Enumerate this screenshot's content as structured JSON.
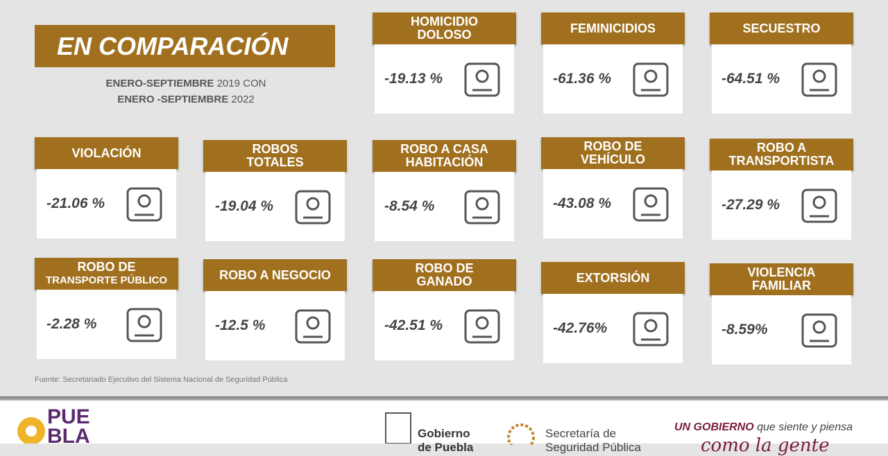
{
  "header": {
    "title": "EN COMPARACIÓN",
    "subtitle": [
      {
        "bold": "ENERO-SEPTIEMBRE",
        "rest": " 2019 CON"
      },
      {
        "bold": "ENERO -SEPTIEMBRE",
        "rest": " 2022"
      }
    ]
  },
  "cards": [
    {
      "title": [
        "HOMICIDIO",
        "DOLOSO"
      ],
      "value": "-19.13 %"
    },
    {
      "title": [
        "FEMINICIDIOS"
      ],
      "value": "-61.36 %"
    },
    {
      "title": [
        "SECUESTRO"
      ],
      "value": "-64.51 %"
    },
    {
      "title": [
        "VIOLACIÓN"
      ],
      "value": "-21.06 %"
    },
    {
      "title": [
        "ROBOS",
        "TOTALES"
      ],
      "value": "-19.04 %"
    },
    {
      "title": [
        "ROBO A CASA",
        "HABITACIÓN"
      ],
      "value": "-8.54 %"
    },
    {
      "title": [
        "ROBO DE",
        "VEHÍCULO"
      ],
      "value": "-43.08 %"
    },
    {
      "title": [
        "ROBO A",
        "TRANSPORTISTA"
      ],
      "value": "-27.29 %"
    },
    {
      "title": [
        "ROBO DE",
        "TRANSPORTE PÚBLICO"
      ],
      "value": "-2.28 %"
    },
    {
      "title": [
        "ROBO A NEGOCIO"
      ],
      "value": "-12.5 %"
    },
    {
      "title": [
        "ROBO DE",
        "GANADO"
      ],
      "value": "-42.51 %"
    },
    {
      "title": [
        "EXTORSIÓN"
      ],
      "value": "-42.76%"
    },
    {
      "title": [
        "VIOLENCIA",
        "FAMILIAR"
      ],
      "value": "-8.59%"
    }
  ],
  "source": "Fuente: Secretariado Ejecutivo del  Sistema Nacional de Seguridad Pública",
  "footer": {
    "puebla": [
      "PUE",
      "BLA"
    ],
    "gobierno": [
      "Gobierno",
      "de Puebla"
    ],
    "secretaria": [
      "Secretaría de",
      "Seguridad Pública"
    ],
    "slogan_bold": "UN GOBIERNO",
    "slogan_rest": " que siente y piensa",
    "slogan_line2": "como la gente"
  }
}
